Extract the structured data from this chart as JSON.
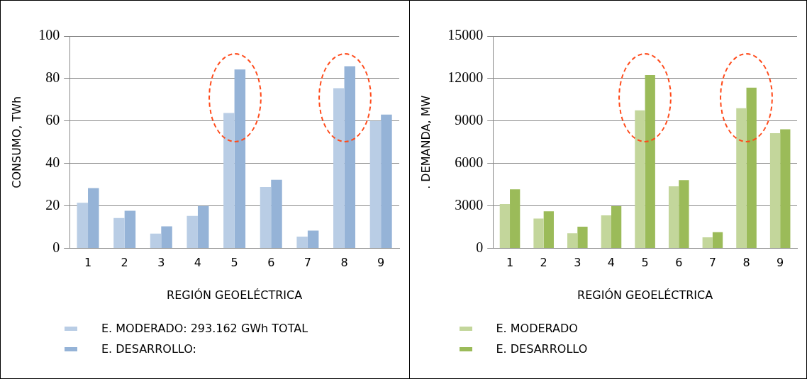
{
  "chart_data": [
    {
      "type": "bar",
      "categories": [
        "1",
        "2",
        "3",
        "4",
        "5",
        "6",
        "7",
        "8",
        "9"
      ],
      "xlabel": "REGIÓN GEOELÉCTRICA",
      "ylabel": "CONSUMO, TWh",
      "ylim": [
        0,
        100
      ],
      "yticks": [
        0,
        20,
        40,
        60,
        80,
        100
      ],
      "grid": "y",
      "legend": "bottom",
      "series": [
        {
          "name": "E. MODERADO: 293.162 GWh TOTAL",
          "color": "#b9cde5",
          "values": [
            21.5,
            14.3,
            7,
            15.3,
            63.8,
            28.9,
            5.5,
            75.5,
            60
          ]
        },
        {
          "name": "E. DESARROLLO:",
          "color": "#95b3d7",
          "values": [
            28.4,
            17.7,
            10.4,
            20,
            84.3,
            32.3,
            8.4,
            85.8,
            63
          ]
        }
      ]
    },
    {
      "type": "bar",
      "categories": [
        "1",
        "2",
        "3",
        "4",
        "5",
        "6",
        "7",
        "8",
        "9"
      ],
      "xlabel": "REGIÓN GEOELÉCTRICA",
      "ylabel": ". DEMANDA, MW",
      "ylim": [
        0,
        15000
      ],
      "yticks": [
        0,
        3000,
        6000,
        9000,
        12000,
        15000
      ],
      "grid": "y",
      "legend": "bottom",
      "series": [
        {
          "name": "E. MODERADO",
          "color": "#c3d69b",
          "values": [
            3130,
            2110,
            1070,
            2330,
            9760,
            4390,
            780,
            9900,
            8140
          ]
        },
        {
          "name": "E. DESARROLLO",
          "color": "#9bbb59",
          "values": [
            4170,
            2620,
            1530,
            2990,
            12250,
            4820,
            1150,
            11360,
            8420
          ]
        }
      ]
    }
  ]
}
